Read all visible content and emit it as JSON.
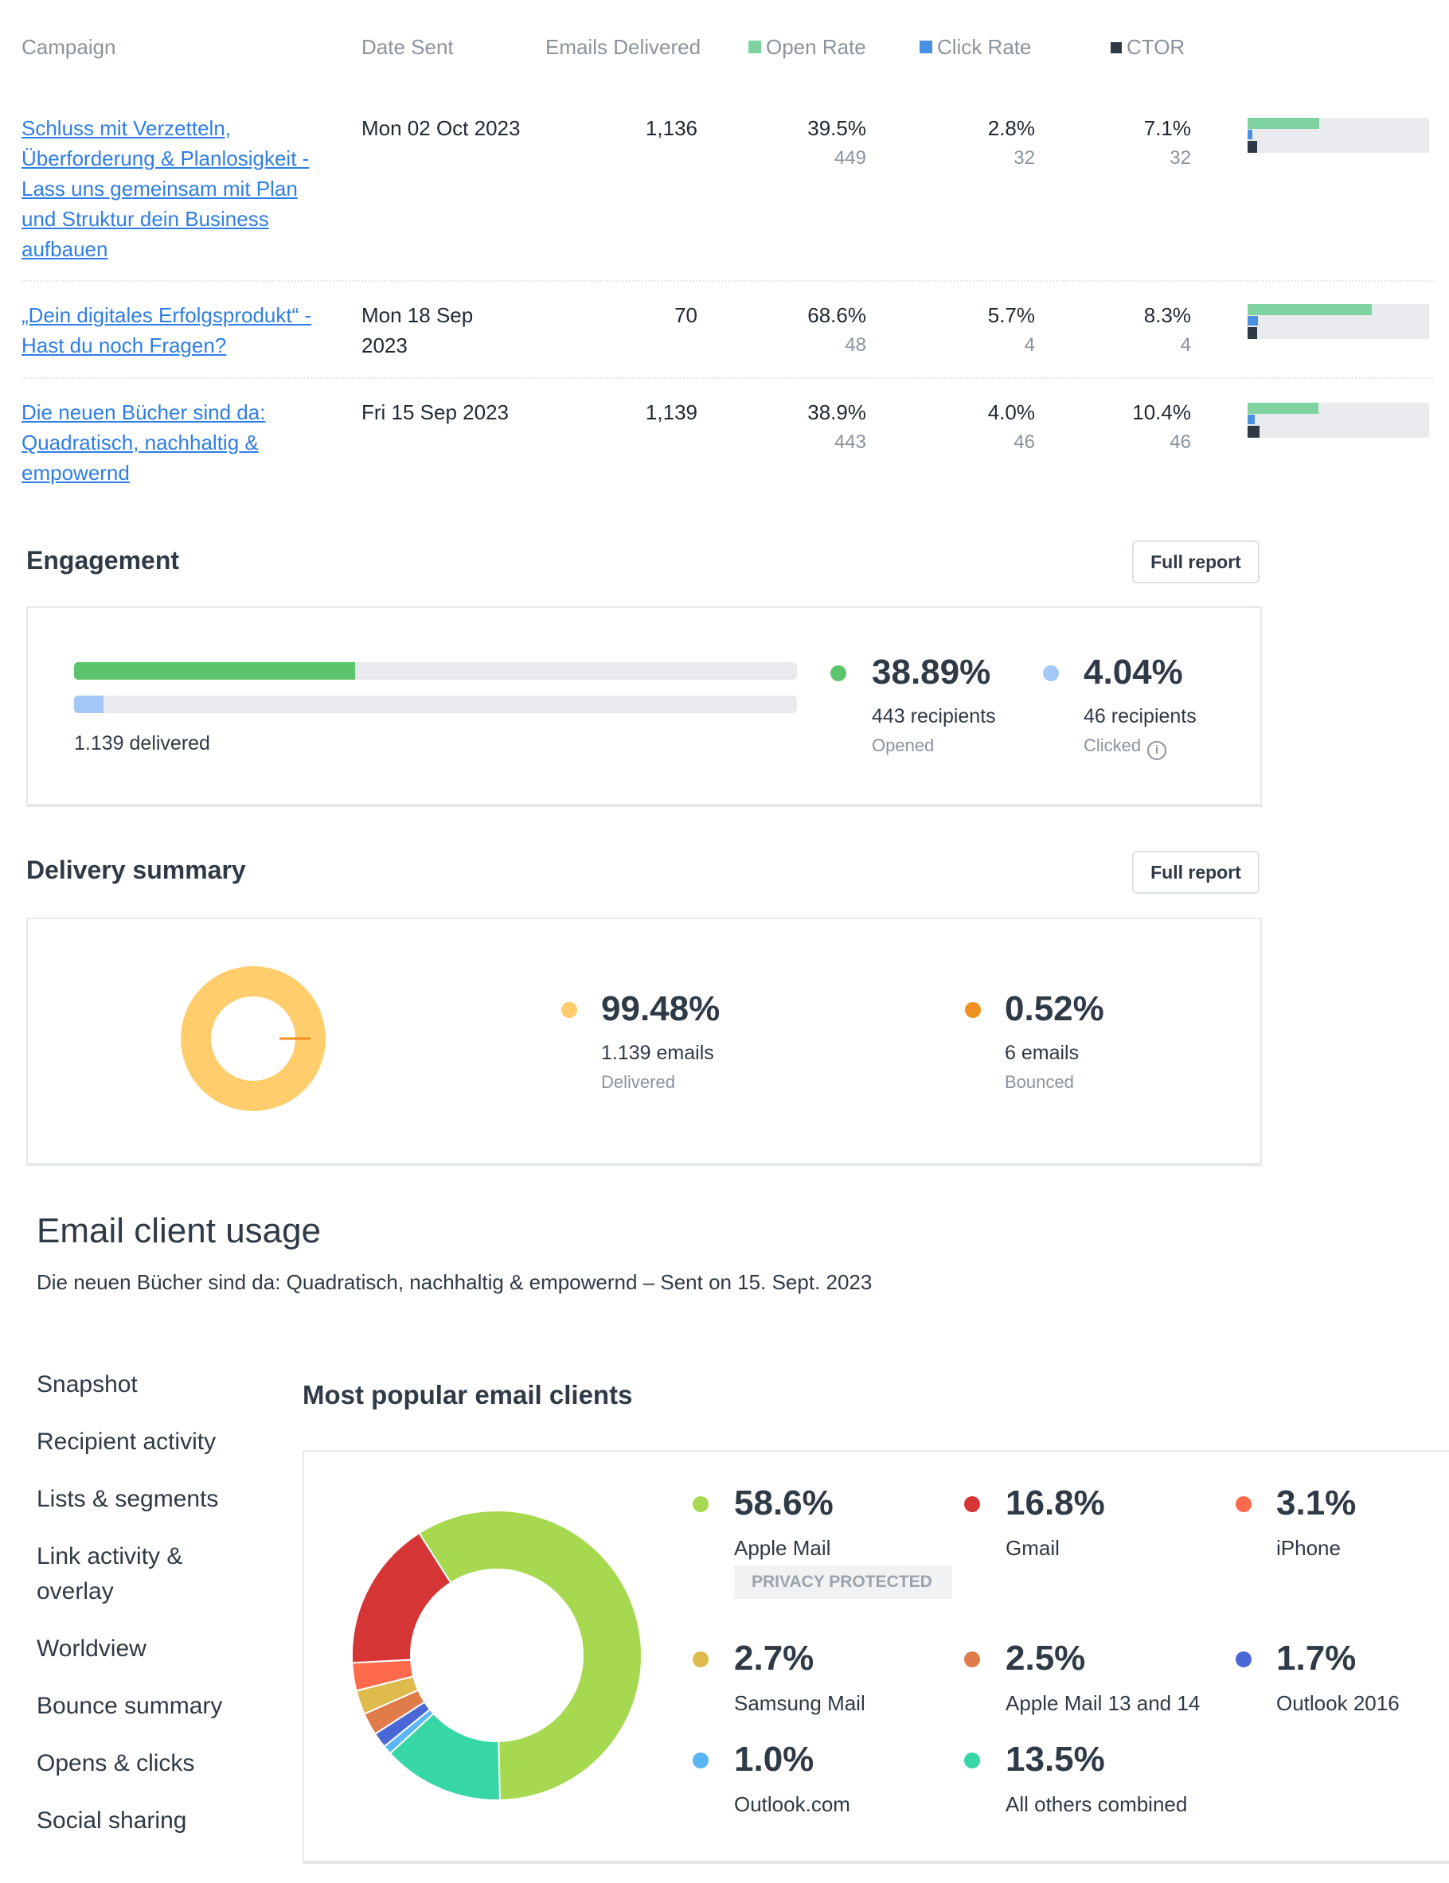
{
  "table": {
    "headers": {
      "campaign": "Campaign",
      "date_sent": "Date Sent",
      "emails_delivered": "Emails Delivered",
      "open_rate": "Open Rate",
      "click_rate": "Click Rate",
      "ctor": "CTOR"
    },
    "legend_colors": {
      "open": "#7ed3a0",
      "click": "#4a90e2",
      "ctor": "#2f3943"
    },
    "rows": [
      {
        "campaign": "Schluss mit Verzetteln, Überforderung & Planlosigkeit - Lass uns gemeinsam mit Plan und Struktur dein Business aufbauen",
        "date": "Mon 02 Oct 2023",
        "delivered": "1,136",
        "open_rate": "39.5%",
        "open_count": "449",
        "click_rate": "2.8%",
        "click_count": "32",
        "ctor": "7.1%",
        "ctor_count": "32",
        "bar_open": 0.395,
        "bar_click": 0.028,
        "bar_ctor": 0.071
      },
      {
        "campaign": "„Dein digitales Erfolgsprodukt“ - Hast du noch Fragen?",
        "date": "Mon 18 Sep 2023",
        "delivered": "70",
        "open_rate": "68.6%",
        "open_count": "48",
        "click_rate": "5.7%",
        "click_count": "4",
        "ctor": "8.3%",
        "ctor_count": "4",
        "bar_open": 0.686,
        "bar_click": 0.057,
        "bar_ctor": 0.083
      },
      {
        "campaign": "Die neuen Bücher sind da: Quadratisch, nachhaltig & empowernd",
        "date": "Fri 15 Sep 2023",
        "delivered": "1,139",
        "open_rate": "38.9%",
        "open_count": "443",
        "click_rate": "4.0%",
        "click_count": "46",
        "ctor": "10.4%",
        "ctor_count": "46",
        "bar_open": 0.389,
        "bar_click": 0.04,
        "bar_ctor": 0.104
      }
    ]
  },
  "engagement": {
    "title": "Engagement",
    "full_report": "Full report",
    "delivered_label": "1.139 delivered",
    "open_fraction": 0.3889,
    "click_fraction": 0.0404,
    "opened": {
      "pct": "38.89%",
      "recipients": "443 recipients",
      "label": "Opened",
      "color": "#5cc46a"
    },
    "clicked": {
      "pct": "4.04%",
      "recipients": "46 recipients",
      "label": "Clicked",
      "color": "#a3c8f5"
    },
    "info_icon": "info-icon"
  },
  "delivery": {
    "title": "Delivery summary",
    "full_report": "Full report",
    "delivered": {
      "pct": "99.48%",
      "emails": "1.139 emails",
      "label": "Delivered",
      "color": "#ffcd6b",
      "fraction": 0.9948
    },
    "bounced": {
      "pct": "0.52%",
      "emails": "6 emails",
      "label": "Bounced",
      "color": "#f0901f",
      "fraction": 0.0052
    }
  },
  "client_usage": {
    "title": "Email client usage",
    "subtitle": "Die neuen Bücher sind da: Quadratisch, nachhaltig & empowernd – Sent on 15. Sept. 2023",
    "sidebar": [
      "Snapshot",
      "Recipient activity",
      "Lists & segments",
      "Link activity & overlay",
      "Worldview",
      "Bounce summary",
      "Opens & clicks",
      "Social sharing"
    ],
    "section_title": "Most popular email clients",
    "privacy_badge": "PRIVACY PROTECTED"
  },
  "chart_data": {
    "type": "pie",
    "title": "Most popular email clients",
    "donut": true,
    "slices": [
      {
        "label": "Apple Mail",
        "value": 58.6,
        "display": "58.6%",
        "color": "#a6d94f"
      },
      {
        "label": "Gmail",
        "value": 16.8,
        "display": "16.8%",
        "color": "#d63535"
      },
      {
        "label": "iPhone",
        "value": 3.1,
        "display": "3.1%",
        "color": "#ff6a4d"
      },
      {
        "label": "Samsung Mail",
        "value": 2.7,
        "display": "2.7%",
        "color": "#dfbb4d"
      },
      {
        "label": "Apple Mail 13 and 14",
        "value": 2.5,
        "display": "2.5%",
        "color": "#e07b4a"
      },
      {
        "label": "Outlook 2016",
        "value": 1.7,
        "display": "1.7%",
        "color": "#4b67d6"
      },
      {
        "label": "Outlook.com",
        "value": 1.0,
        "display": "1.0%",
        "color": "#5ab6f5"
      },
      {
        "label": "All others combined",
        "value": 13.5,
        "display": "13.5%",
        "color": "#36d6a6"
      }
    ]
  }
}
